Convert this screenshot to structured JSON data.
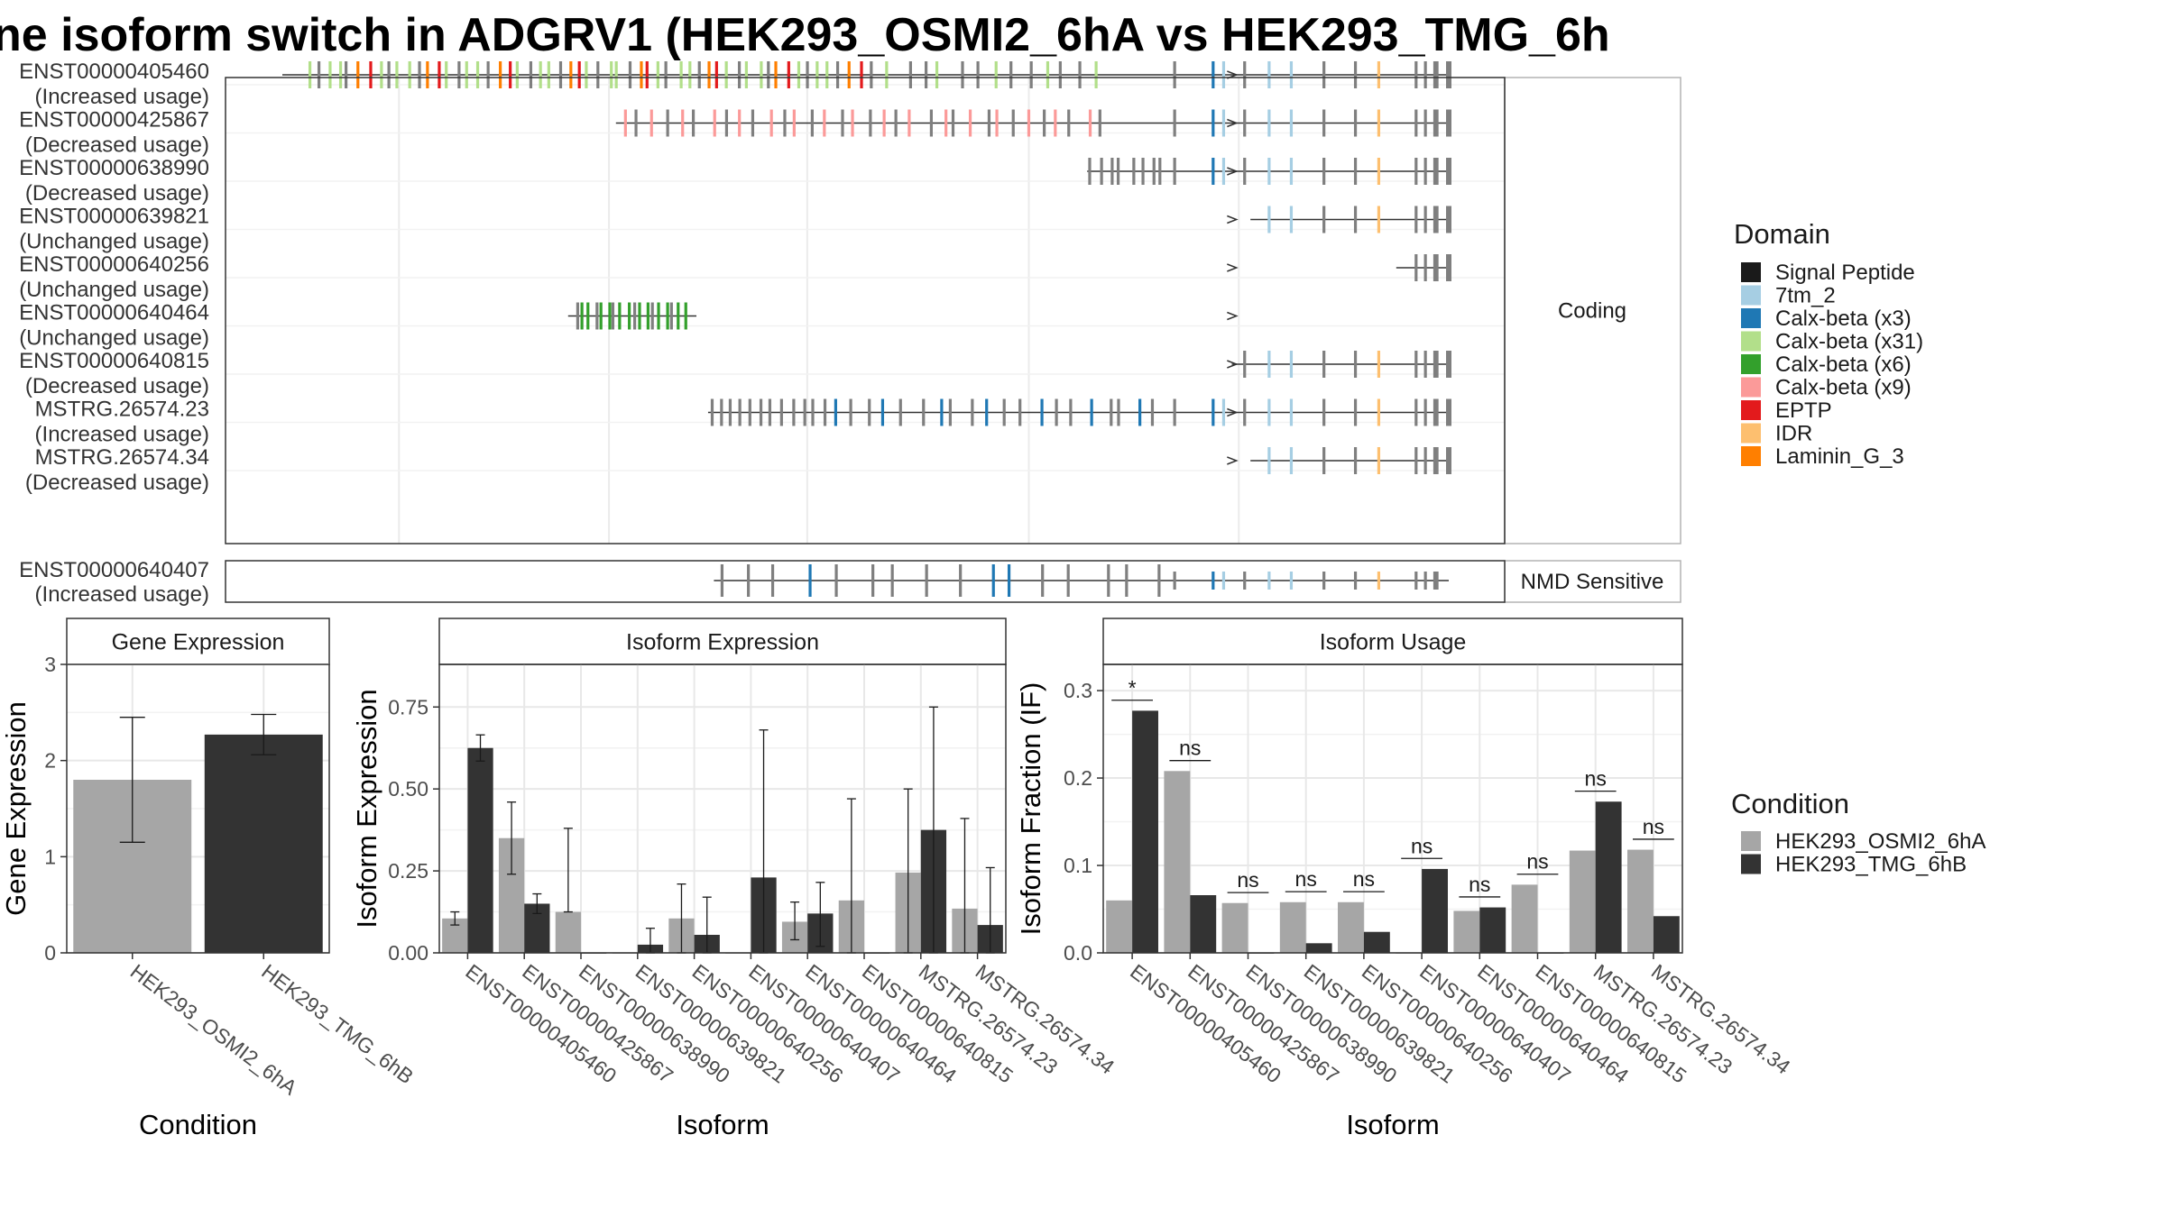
{
  "title": "ne isoform switch in ADGRV1 (HEK293_OSMI2_6hA vs HEK293_TMG_6h",
  "isoform_panel": {
    "coding_label": "Coding",
    "nmd_label": "NMD Sensitive",
    "coding_isoforms": [
      {
        "id": "ENST00000405460",
        "usage": "(Increased usage)"
      },
      {
        "id": "ENST00000425867",
        "usage": "(Decreased usage)"
      },
      {
        "id": "ENST00000638990",
        "usage": "(Decreased usage)"
      },
      {
        "id": "ENST00000639821",
        "usage": "(Unchanged usage)"
      },
      {
        "id": "ENST00000640256",
        "usage": "(Unchanged usage)"
      },
      {
        "id": "ENST00000640464",
        "usage": "(Unchanged usage)"
      },
      {
        "id": "ENST00000640815",
        "usage": "(Decreased usage)"
      },
      {
        "id": "MSTRG.26574.23",
        "usage": "(Increased usage)"
      },
      {
        "id": "MSTRG.26574.34",
        "usage": "(Decreased usage)"
      }
    ],
    "nmd_isoforms": [
      {
        "id": "ENST00000640407",
        "usage": "(Increased usage)"
      }
    ]
  },
  "domain_legend": {
    "title": "Domain",
    "items": [
      {
        "label": "Signal Peptide",
        "color": "#1a1a1a"
      },
      {
        "label": "7tm_2",
        "color": "#a6cee3"
      },
      {
        "label": "Calx-beta (x3)",
        "color": "#1f78b4"
      },
      {
        "label": "Calx-beta (x31)",
        "color": "#b2df8a"
      },
      {
        "label": "Calx-beta (x6)",
        "color": "#33a02c"
      },
      {
        "label": "Calx-beta (x9)",
        "color": "#fb9a99"
      },
      {
        "label": "EPTP",
        "color": "#e31a1c"
      },
      {
        "label": "IDR",
        "color": "#fdbf6f"
      },
      {
        "label": "Laminin_G_3",
        "color": "#ff7f00"
      }
    ]
  },
  "condition_legend": {
    "title": "Condition",
    "items": [
      {
        "label": "HEK293_OSMI2_6hA",
        "color": "#a6a6a6"
      },
      {
        "label": "HEK293_TMG_6hB",
        "color": "#333333"
      }
    ]
  },
  "chart_data": [
    {
      "type": "bar",
      "title": "Gene Expression",
      "xlabel": "Condition",
      "ylabel": "Gene Expression",
      "ylim": [
        0,
        3
      ],
      "yticks": [
        "0",
        "1",
        "2",
        "3"
      ],
      "categories": [
        "HEK293_OSMI2_6hA",
        "HEK293_TMG_6hB"
      ],
      "values": [
        1.8,
        2.27
      ],
      "error_low": [
        1.15,
        2.06
      ],
      "error_high": [
        2.45,
        2.48
      ],
      "colors": [
        "#a6a6a6",
        "#333333"
      ]
    },
    {
      "type": "bar",
      "title": "Isoform Expression",
      "xlabel": "Isoform",
      "ylabel": "Isoform Expression",
      "ylim": [
        0,
        0.88
      ],
      "yticks": [
        "0.00",
        "0.25",
        "0.50",
        "0.75"
      ],
      "categories": [
        "ENST00000405460",
        "ENST00000425867",
        "ENST00000638990",
        "ENST00000639821",
        "ENST00000640256",
        "ENST00000640407",
        "ENST00000640464",
        "ENST00000640815",
        "MSTRG.26574.23",
        "MSTRG.26574.34"
      ],
      "series": [
        {
          "name": "HEK293_OSMI2_6hA",
          "values": [
            0.105,
            0.35,
            0.125,
            0.0,
            0.105,
            0.0,
            0.095,
            0.16,
            0.245,
            0.135
          ],
          "error_low": [
            0.085,
            0.24,
            null,
            null,
            0.0,
            null,
            0.04,
            0.0,
            0.0,
            0.0
          ],
          "error_high": [
            0.125,
            0.46,
            0.38,
            null,
            0.21,
            null,
            0.155,
            0.47,
            0.5,
            0.41
          ]
        },
        {
          "name": "HEK293_TMG_6hB",
          "values": [
            0.625,
            0.15,
            0.0,
            0.025,
            0.055,
            0.23,
            0.12,
            0.0,
            0.375,
            0.085
          ],
          "error_low": [
            0.585,
            0.12,
            null,
            0.0,
            0.0,
            0.0,
            0.02,
            null,
            0.0,
            0.0
          ],
          "error_high": [
            0.665,
            0.18,
            null,
            0.075,
            0.17,
            0.68,
            0.215,
            null,
            0.75,
            0.26
          ]
        }
      ]
    },
    {
      "type": "bar",
      "title": "Isoform Usage",
      "xlabel": "Isoform",
      "ylabel": "Isoform Fraction (IF)",
      "ylim": [
        0,
        0.33
      ],
      "yticks": [
        "0.0",
        "0.1",
        "0.2",
        "0.3"
      ],
      "categories": [
        "ENST00000405460",
        "ENST00000425867",
        "ENST00000638990",
        "ENST00000639821",
        "ENST00000640256",
        "ENST00000640407",
        "ENST00000640464",
        "ENST00000640815",
        "MSTRG.26574.23",
        "MSTRG.26574.34"
      ],
      "series": [
        {
          "name": "HEK293_OSMI2_6hA",
          "values": [
            0.06,
            0.208,
            0.057,
            0.058,
            0.058,
            0.0,
            0.048,
            0.078,
            0.117,
            0.118
          ]
        },
        {
          "name": "HEK293_TMG_6hB",
          "values": [
            0.277,
            0.066,
            0.0,
            0.011,
            0.024,
            0.096,
            0.052,
            0.0,
            0.173,
            0.042
          ]
        }
      ],
      "significance": [
        "*",
        "ns",
        "ns",
        "ns",
        "ns",
        "ns",
        "ns",
        "ns",
        "ns",
        "ns"
      ]
    }
  ]
}
